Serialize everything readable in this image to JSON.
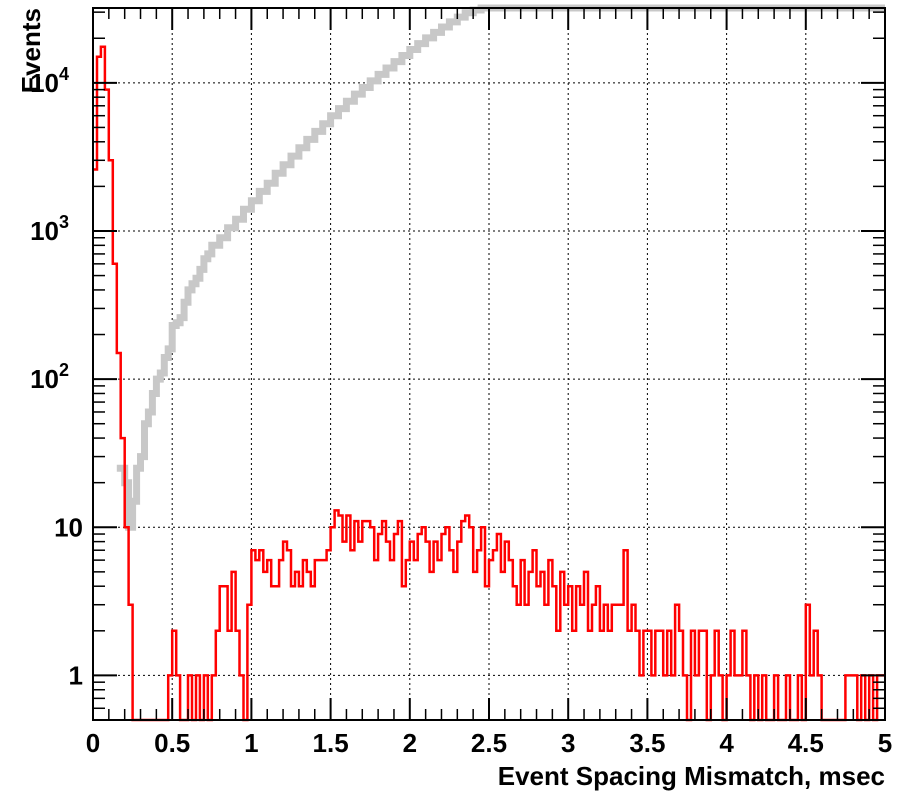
{
  "chart_data": {
    "type": "line",
    "subtype": "step-histogram",
    "title": "",
    "xlabel": "Event Spacing Mismatch, msec",
    "ylabel": "Events",
    "xlim": [
      0,
      5
    ],
    "ylim": [
      0.5,
      32000
    ],
    "yscale": "log",
    "grid": true,
    "x_tick_labels": [
      {
        "value": 0,
        "label": "0"
      },
      {
        "value": 0.5,
        "label": "0.5"
      },
      {
        "value": 1,
        "label": "1"
      },
      {
        "value": 1.5,
        "label": "1.5"
      },
      {
        "value": 2,
        "label": "2"
      },
      {
        "value": 2.5,
        "label": "2.5"
      },
      {
        "value": 3,
        "label": "3"
      },
      {
        "value": 3.5,
        "label": "3.5"
      },
      {
        "value": 4,
        "label": "4"
      },
      {
        "value": 4.5,
        "label": "4.5"
      },
      {
        "value": 5,
        "label": "5"
      }
    ],
    "y_tick_labels": [
      {
        "value": 1,
        "label": "1"
      },
      {
        "value": 10,
        "label": "10"
      },
      {
        "value": 100,
        "label": "10^2"
      },
      {
        "value": 1000,
        "label": "10^3"
      },
      {
        "value": 10000,
        "label": "10^4"
      }
    ],
    "series": [
      {
        "color": "#c8c8c8",
        "points": [
          [
            0.15,
            25
          ],
          [
            0.2,
            20
          ],
          [
            0.225,
            10
          ],
          [
            0.25,
            15
          ],
          [
            0.275,
            25
          ],
          [
            0.3,
            30
          ],
          [
            0.325,
            50
          ],
          [
            0.35,
            60
          ],
          [
            0.375,
            80
          ],
          [
            0.4,
            100
          ],
          [
            0.425,
            110
          ],
          [
            0.45,
            140
          ],
          [
            0.475,
            160
          ],
          [
            0.5,
            230
          ],
          [
            0.525,
            240
          ],
          [
            0.55,
            260
          ],
          [
            0.575,
            330
          ],
          [
            0.6,
            400
          ],
          [
            0.625,
            440
          ],
          [
            0.65,
            480
          ],
          [
            0.675,
            550
          ],
          [
            0.7,
            650
          ],
          [
            0.725,
            700
          ],
          [
            0.75,
            800
          ],
          [
            0.8,
            900
          ],
          [
            0.85,
            1050
          ],
          [
            0.9,
            1200
          ],
          [
            0.95,
            1400
          ],
          [
            1.0,
            1600
          ],
          [
            1.05,
            1850
          ],
          [
            1.1,
            2100
          ],
          [
            1.15,
            2450
          ],
          [
            1.2,
            2800
          ],
          [
            1.25,
            3200
          ],
          [
            1.3,
            3650
          ],
          [
            1.35,
            4150
          ],
          [
            1.4,
            4700
          ],
          [
            1.45,
            5300
          ],
          [
            1.5,
            6000
          ],
          [
            1.55,
            6700
          ],
          [
            1.6,
            7500
          ],
          [
            1.65,
            8400
          ],
          [
            1.7,
            9300
          ],
          [
            1.75,
            10300
          ],
          [
            1.8,
            11400
          ],
          [
            1.85,
            12600
          ],
          [
            1.9,
            13900
          ],
          [
            1.95,
            15300
          ],
          [
            2.0,
            16800
          ],
          [
            2.05,
            18400
          ],
          [
            2.1,
            20100
          ],
          [
            2.15,
            21900
          ],
          [
            2.2,
            23800
          ],
          [
            2.25,
            25800
          ],
          [
            2.3,
            27800
          ],
          [
            2.35,
            29700
          ],
          [
            2.4,
            31000
          ],
          [
            2.45,
            32000
          ],
          [
            2.5,
            32000
          ],
          [
            3.0,
            32000
          ],
          [
            3.5,
            32000
          ],
          [
            4.0,
            32000
          ],
          [
            4.5,
            32000
          ],
          [
            5.0,
            32000
          ]
        ]
      },
      {
        "color": "#ff0000",
        "points": [
          [
            0.0,
            2600
          ],
          [
            0.025,
            15000
          ],
          [
            0.05,
            17500
          ],
          [
            0.075,
            9000
          ],
          [
            0.1,
            3000
          ],
          [
            0.125,
            600
          ],
          [
            0.15,
            150
          ],
          [
            0.175,
            40
          ],
          [
            0.2,
            10
          ],
          [
            0.225,
            3
          ],
          [
            0.25,
            0.5
          ],
          [
            0.275,
            0.5
          ],
          [
            0.3,
            0.5
          ],
          [
            0.325,
            0.5
          ],
          [
            0.35,
            0.5
          ],
          [
            0.375,
            0.5
          ],
          [
            0.4,
            0.5
          ],
          [
            0.425,
            0.5
          ],
          [
            0.45,
            0.5
          ],
          [
            0.475,
            1
          ],
          [
            0.5,
            2
          ],
          [
            0.525,
            1
          ],
          [
            0.55,
            0.5
          ],
          [
            0.575,
            0.5
          ],
          [
            0.6,
            1
          ],
          [
            0.625,
            0.5
          ],
          [
            0.65,
            1
          ],
          [
            0.675,
            0.5
          ],
          [
            0.7,
            1
          ],
          [
            0.725,
            0.5
          ],
          [
            0.75,
            1
          ],
          [
            0.775,
            2
          ],
          [
            0.8,
            4
          ],
          [
            0.825,
            4
          ],
          [
            0.85,
            2
          ],
          [
            0.875,
            5
          ],
          [
            0.9,
            2
          ],
          [
            0.925,
            1
          ],
          [
            0.95,
            0.5
          ],
          [
            0.975,
            3
          ],
          [
            1.0,
            7
          ],
          [
            1.025,
            6
          ],
          [
            1.05,
            7
          ],
          [
            1.075,
            5
          ],
          [
            1.1,
            6
          ],
          [
            1.125,
            4
          ],
          [
            1.15,
            4
          ],
          [
            1.175,
            6
          ],
          [
            1.2,
            8
          ],
          [
            1.225,
            7
          ],
          [
            1.25,
            4
          ],
          [
            1.275,
            5
          ],
          [
            1.3,
            4
          ],
          [
            1.325,
            6
          ],
          [
            1.35,
            5
          ],
          [
            1.375,
            4
          ],
          [
            1.4,
            6
          ],
          [
            1.425,
            6
          ],
          [
            1.45,
            6
          ],
          [
            1.475,
            7
          ],
          [
            1.5,
            10
          ],
          [
            1.525,
            13
          ],
          [
            1.55,
            12
          ],
          [
            1.575,
            8
          ],
          [
            1.6,
            12
          ],
          [
            1.625,
            7
          ],
          [
            1.65,
            11
          ],
          [
            1.675,
            8
          ],
          [
            1.7,
            11
          ],
          [
            1.725,
            11
          ],
          [
            1.75,
            10
          ],
          [
            1.775,
            6
          ],
          [
            1.8,
            9
          ],
          [
            1.825,
            11
          ],
          [
            1.85,
            8
          ],
          [
            1.875,
            6
          ],
          [
            1.9,
            9
          ],
          [
            1.925,
            11
          ],
          [
            1.95,
            4
          ],
          [
            1.975,
            6
          ],
          [
            2.0,
            8
          ],
          [
            2.025,
            6
          ],
          [
            2.05,
            9
          ],
          [
            2.075,
            10
          ],
          [
            2.1,
            8
          ],
          [
            2.125,
            5
          ],
          [
            2.15,
            8
          ],
          [
            2.175,
            6
          ],
          [
            2.2,
            9
          ],
          [
            2.225,
            10
          ],
          [
            2.25,
            7
          ],
          [
            2.275,
            5
          ],
          [
            2.3,
            8
          ],
          [
            2.325,
            11
          ],
          [
            2.35,
            12
          ],
          [
            2.375,
            10
          ],
          [
            2.4,
            5
          ],
          [
            2.425,
            7
          ],
          [
            2.45,
            10
          ],
          [
            2.475,
            4
          ],
          [
            2.5,
            6
          ],
          [
            2.525,
            7
          ],
          [
            2.55,
            9
          ],
          [
            2.575,
            5
          ],
          [
            2.6,
            8
          ],
          [
            2.625,
            6
          ],
          [
            2.65,
            4
          ],
          [
            2.675,
            3
          ],
          [
            2.7,
            6
          ],
          [
            2.725,
            3
          ],
          [
            2.75,
            5
          ],
          [
            2.775,
            7
          ],
          [
            2.8,
            4
          ],
          [
            2.825,
            5
          ],
          [
            2.85,
            3
          ],
          [
            2.875,
            6
          ],
          [
            2.9,
            4
          ],
          [
            2.925,
            2
          ],
          [
            2.95,
            5
          ],
          [
            2.975,
            3
          ],
          [
            3.0,
            4
          ],
          [
            3.025,
            2
          ],
          [
            3.05,
            4
          ],
          [
            3.075,
            3
          ],
          [
            3.1,
            5
          ],
          [
            3.125,
            2
          ],
          [
            3.15,
            3
          ],
          [
            3.175,
            4
          ],
          [
            3.2,
            2
          ],
          [
            3.225,
            3
          ],
          [
            3.25,
            2
          ],
          [
            3.275,
            3
          ],
          [
            3.3,
            3
          ],
          [
            3.325,
            3
          ],
          [
            3.35,
            7
          ],
          [
            3.375,
            2
          ],
          [
            3.4,
            3
          ],
          [
            3.425,
            2
          ],
          [
            3.45,
            1
          ],
          [
            3.475,
            2
          ],
          [
            3.5,
            2
          ],
          [
            3.525,
            1
          ],
          [
            3.55,
            2
          ],
          [
            3.575,
            2
          ],
          [
            3.6,
            1
          ],
          [
            3.625,
            2
          ],
          [
            3.65,
            1
          ],
          [
            3.675,
            3
          ],
          [
            3.7,
            2
          ],
          [
            3.725,
            1
          ],
          [
            3.75,
            0.5
          ],
          [
            3.775,
            2
          ],
          [
            3.8,
            1
          ],
          [
            3.825,
            2
          ],
          [
            3.85,
            2
          ],
          [
            3.875,
            0.5
          ],
          [
            3.9,
            1
          ],
          [
            3.925,
            2
          ],
          [
            3.95,
            1
          ],
          [
            3.975,
            0.5
          ],
          [
            4.0,
            1
          ],
          [
            4.025,
            2
          ],
          [
            4.05,
            1
          ],
          [
            4.075,
            1
          ],
          [
            4.1,
            2
          ],
          [
            4.125,
            1
          ],
          [
            4.15,
            0.5
          ],
          [
            4.175,
            1
          ],
          [
            4.2,
            0.5
          ],
          [
            4.225,
            1
          ],
          [
            4.25,
            0.5
          ],
          [
            4.275,
            0.5
          ],
          [
            4.3,
            1
          ],
          [
            4.325,
            0.5
          ],
          [
            4.35,
            0.5
          ],
          [
            4.375,
            1
          ],
          [
            4.4,
            0.5
          ],
          [
            4.425,
            0.5
          ],
          [
            4.45,
            1
          ],
          [
            4.475,
            0.5
          ],
          [
            4.5,
            3
          ],
          [
            4.525,
            1
          ],
          [
            4.55,
            2
          ],
          [
            4.575,
            1
          ],
          [
            4.6,
            0.5
          ],
          [
            4.625,
            0.5
          ],
          [
            4.65,
            0.5
          ],
          [
            4.675,
            0.5
          ],
          [
            4.7,
            0.5
          ],
          [
            4.725,
            0.5
          ],
          [
            4.75,
            1
          ],
          [
            4.775,
            1
          ],
          [
            4.8,
            1
          ],
          [
            4.825,
            0.5
          ],
          [
            4.85,
            1
          ],
          [
            4.875,
            0.5
          ],
          [
            4.9,
            1
          ],
          [
            4.925,
            0.5
          ],
          [
            4.95,
            1
          ],
          [
            4.975,
            1
          ],
          [
            5.0,
            1
          ]
        ]
      }
    ]
  }
}
